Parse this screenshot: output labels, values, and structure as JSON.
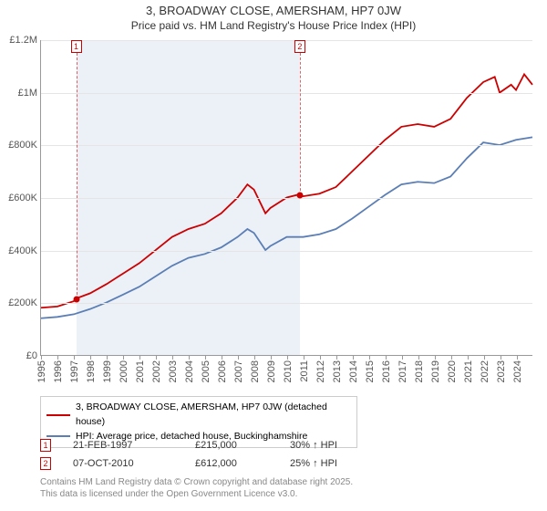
{
  "title": "3, BROADWAY CLOSE, AMERSHAM, HP7 0JW",
  "subtitle": "Price paid vs. HM Land Registry's House Price Index (HPI)",
  "chart": {
    "type": "line",
    "background_color": "#ffffff",
    "grid_color": "#e5e5e5",
    "axis_color": "#999999",
    "text_color": "#555555",
    "xlim": [
      1995,
      2025
    ],
    "ylim": [
      0,
      1200000
    ],
    "ytick_step": 200000,
    "yticks": [
      "£0",
      "£200K",
      "£400K",
      "£600K",
      "£800K",
      "£1M",
      "£1.2M"
    ],
    "xticks": [
      1995,
      1996,
      1997,
      1998,
      1999,
      2000,
      2001,
      2002,
      2003,
      2004,
      2005,
      2006,
      2007,
      2008,
      2009,
      2010,
      2011,
      2012,
      2013,
      2014,
      2015,
      2016,
      2017,
      2018,
      2019,
      2020,
      2021,
      2022,
      2023,
      2024
    ],
    "shaded_region": {
      "from": 1997.14,
      "to": 2010.77,
      "color": "rgba(200,215,235,0.35)"
    },
    "title_fontsize": 13,
    "label_fontsize": 11,
    "line_width": 1.8,
    "series": [
      {
        "name": "3, BROADWAY CLOSE, AMERSHAM, HP7 0JW (detached house)",
        "color": "#cc0000",
        "points": [
          [
            1995.0,
            180000
          ],
          [
            1996.0,
            185000
          ],
          [
            1997.0,
            205000
          ],
          [
            1997.14,
            215000
          ],
          [
            1998.0,
            235000
          ],
          [
            1999.0,
            270000
          ],
          [
            2000.0,
            310000
          ],
          [
            2001.0,
            350000
          ],
          [
            2002.0,
            400000
          ],
          [
            2003.0,
            450000
          ],
          [
            2004.0,
            480000
          ],
          [
            2005.0,
            500000
          ],
          [
            2006.0,
            540000
          ],
          [
            2007.0,
            600000
          ],
          [
            2007.6,
            650000
          ],
          [
            2008.0,
            630000
          ],
          [
            2008.7,
            540000
          ],
          [
            2009.0,
            560000
          ],
          [
            2010.0,
            600000
          ],
          [
            2010.77,
            612000
          ],
          [
            2011.0,
            605000
          ],
          [
            2012.0,
            615000
          ],
          [
            2013.0,
            640000
          ],
          [
            2014.0,
            700000
          ],
          [
            2015.0,
            760000
          ],
          [
            2016.0,
            820000
          ],
          [
            2017.0,
            870000
          ],
          [
            2018.0,
            880000
          ],
          [
            2019.0,
            870000
          ],
          [
            2020.0,
            900000
          ],
          [
            2021.0,
            980000
          ],
          [
            2022.0,
            1040000
          ],
          [
            2022.7,
            1060000
          ],
          [
            2023.0,
            1000000
          ],
          [
            2023.7,
            1030000
          ],
          [
            2024.0,
            1010000
          ],
          [
            2024.5,
            1070000
          ],
          [
            2025.0,
            1030000
          ]
        ]
      },
      {
        "name": "HPI: Average price, detached house, Buckinghamshire",
        "color": "#5b7fb5",
        "points": [
          [
            1995.0,
            140000
          ],
          [
            1996.0,
            145000
          ],
          [
            1997.0,
            155000
          ],
          [
            1998.0,
            175000
          ],
          [
            1999.0,
            200000
          ],
          [
            2000.0,
            230000
          ],
          [
            2001.0,
            260000
          ],
          [
            2002.0,
            300000
          ],
          [
            2003.0,
            340000
          ],
          [
            2004.0,
            370000
          ],
          [
            2005.0,
            385000
          ],
          [
            2006.0,
            410000
          ],
          [
            2007.0,
            450000
          ],
          [
            2007.6,
            480000
          ],
          [
            2008.0,
            465000
          ],
          [
            2008.7,
            400000
          ],
          [
            2009.0,
            415000
          ],
          [
            2010.0,
            450000
          ],
          [
            2011.0,
            450000
          ],
          [
            2012.0,
            460000
          ],
          [
            2013.0,
            480000
          ],
          [
            2014.0,
            520000
          ],
          [
            2015.0,
            565000
          ],
          [
            2016.0,
            610000
          ],
          [
            2017.0,
            650000
          ],
          [
            2018.0,
            660000
          ],
          [
            2019.0,
            655000
          ],
          [
            2020.0,
            680000
          ],
          [
            2021.0,
            750000
          ],
          [
            2022.0,
            810000
          ],
          [
            2023.0,
            800000
          ],
          [
            2024.0,
            820000
          ],
          [
            2025.0,
            830000
          ]
        ]
      }
    ],
    "sale_markers": [
      {
        "n": "1",
        "x": 1997.14,
        "y": 215000
      },
      {
        "n": "2",
        "x": 2010.77,
        "y": 612000
      }
    ]
  },
  "legend": {
    "items": [
      {
        "color": "#cc0000",
        "label": "3, BROADWAY CLOSE, AMERSHAM, HP7 0JW (detached house)"
      },
      {
        "color": "#5b7fb5",
        "label": "HPI: Average price, detached house, Buckinghamshire"
      }
    ]
  },
  "sales": [
    {
      "n": "1",
      "date": "21-FEB-1997",
      "price": "£215,000",
      "pct": "30% ↑ HPI"
    },
    {
      "n": "2",
      "date": "07-OCT-2010",
      "price": "£612,000",
      "pct": "25% ↑ HPI"
    }
  ],
  "footer": {
    "line1": "Contains HM Land Registry data © Crown copyright and database right 2025.",
    "line2": "This data is licensed under the Open Government Licence v3.0."
  }
}
